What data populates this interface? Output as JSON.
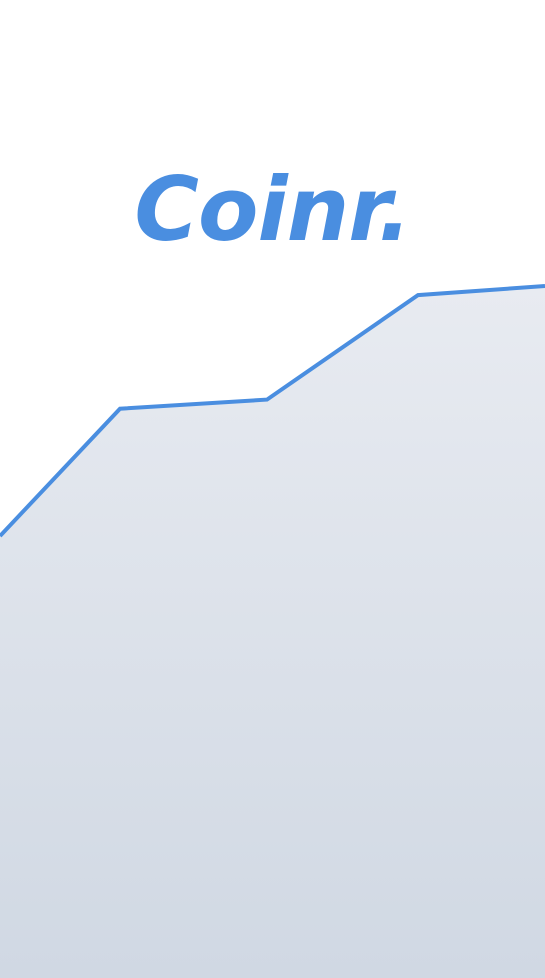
{
  "app": {
    "logo_text": "Coinr."
  },
  "colors": {
    "background": "#ffffff",
    "brand_blue": "#4a8ee0",
    "area_top": "#e8ebf1",
    "area_bottom": "#d0d8e3"
  },
  "decorative_chart": {
    "type": "area",
    "values": [
      0.45,
      0.73,
      0.75,
      0.98,
      1.0
    ],
    "note_free": true
  }
}
